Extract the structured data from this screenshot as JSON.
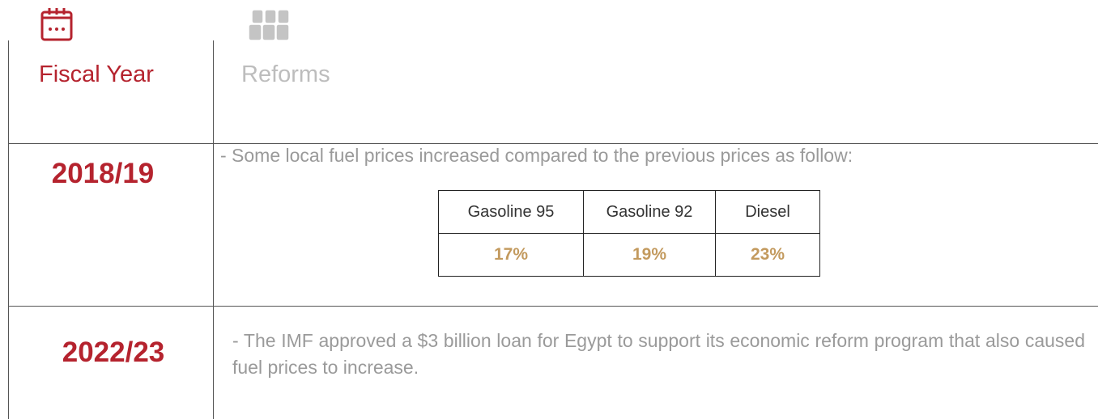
{
  "header": {
    "fiscal_year": "Fiscal Year",
    "reforms": "Reforms"
  },
  "rows": [
    {
      "year": "2018/19",
      "text": "- Some local fuel prices increased compared to the previous prices as follow:",
      "table": {
        "headers": [
          "Gasoline 95",
          "Gasoline 92",
          "Diesel"
        ],
        "values": [
          "17%",
          "19%",
          "23%"
        ]
      }
    },
    {
      "year": "2022/23",
      "text": "- The IMF approved a $3 billion loan for Egypt to support its economic reform program that also caused fuel prices to increase."
    }
  ]
}
